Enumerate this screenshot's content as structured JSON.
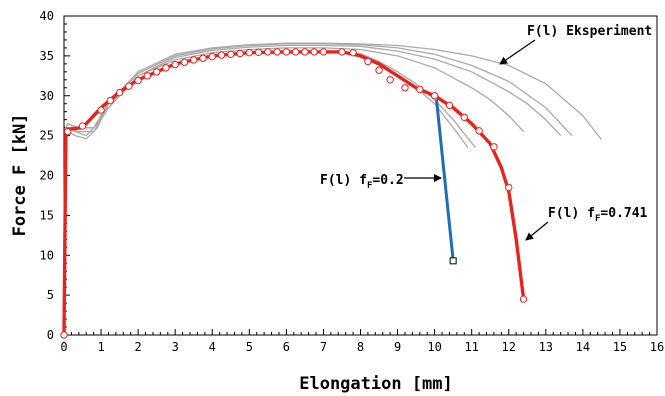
{
  "chart_data": {
    "type": "line",
    "xlabel": "Elongation [mm]",
    "ylabel": "Force F [kN]",
    "xlim": [
      0,
      16
    ],
    "ylim": [
      0,
      40
    ],
    "xticks": [
      "0",
      "1",
      "2",
      "3",
      "4",
      "5",
      "6",
      "7",
      "8",
      "9",
      "10",
      "11",
      "12",
      "13",
      "14",
      "15",
      "16"
    ],
    "yticks": [
      "0",
      "5",
      "10",
      "15",
      "20",
      "25",
      "30",
      "35",
      "40"
    ],
    "grid": false,
    "annotations": {
      "experiment": "F(l) Eksperiment",
      "ff02_prefix": "F(l) f",
      "ff02_sub": "F",
      "ff02_suffix": "=0.2",
      "ff0741_prefix": "F(l) f",
      "ff0741_sub": "F",
      "ff0741_suffix": "=0.741"
    },
    "colors": {
      "experiment": "#aaaaaa",
      "ff0741": "#e8231c",
      "ff02": "#1f6db5"
    },
    "experiment_curves": [
      {
        "x": [
          0,
          0.05,
          0.1,
          0.3,
          0.6,
          0.9,
          1.2,
          2,
          3,
          4,
          5,
          6,
          7,
          8,
          8.5,
          9,
          9.5,
          10,
          10.5,
          10.9
        ],
        "y": [
          0,
          25.5,
          26,
          25.5,
          25,
          26.5,
          29,
          32,
          34,
          35,
          35.4,
          35.5,
          35.5,
          35.2,
          34,
          32.5,
          31,
          29,
          26,
          23.5
        ]
      },
      {
        "x": [
          0,
          0.05,
          0.1,
          0.3,
          0.6,
          0.9,
          1.2,
          2,
          3,
          4,
          5,
          6,
          7,
          8,
          8.5,
          9,
          9.5,
          10,
          10.5,
          11.1
        ],
        "y": [
          0,
          25,
          25.5,
          25,
          24.6,
          26,
          29,
          32,
          34,
          35.1,
          35.5,
          35.6,
          35.6,
          35.3,
          34.3,
          33,
          31.5,
          29.5,
          27,
          23.5
        ]
      },
      {
        "x": [
          0,
          0.05,
          0.1,
          0.4,
          0.8,
          1.2,
          2,
          3,
          4,
          5,
          6,
          7,
          8,
          9,
          10,
          11,
          11.5,
          12,
          12.4
        ],
        "y": [
          0,
          26,
          26.5,
          26,
          26,
          28.5,
          32.5,
          34.5,
          35.4,
          35.8,
          36,
          36,
          35.8,
          35,
          33.5,
          31,
          29.5,
          27.5,
          25.5
        ]
      },
      {
        "x": [
          0,
          0.05,
          0.1,
          0.4,
          0.8,
          1.2,
          2,
          3,
          4,
          5,
          6,
          7,
          8,
          9,
          10,
          11,
          12,
          12.5,
          13,
          13.4
        ],
        "y": [
          0,
          25.5,
          26,
          25.5,
          25.5,
          28.5,
          32.5,
          34.8,
          35.7,
          36.1,
          36.3,
          36.3,
          36.2,
          35.6,
          34.6,
          33,
          30.5,
          29,
          27,
          25
        ]
      },
      {
        "x": [
          0,
          0.05,
          0.1,
          0.4,
          0.8,
          1.2,
          2,
          3,
          4,
          5,
          6,
          7,
          8,
          9,
          10,
          11,
          12,
          13,
          13.7
        ],
        "y": [
          0,
          26,
          26.5,
          26,
          26,
          29,
          32.8,
          35,
          35.9,
          36.3,
          36.5,
          36.5,
          36.4,
          36,
          35.2,
          33.8,
          31.8,
          28.5,
          25
        ]
      },
      {
        "x": [
          0,
          0.05,
          0.1,
          0.4,
          0.8,
          1.2,
          2,
          3,
          4,
          5,
          6,
          7,
          8,
          9,
          10,
          11,
          12,
          13,
          14,
          14.5
        ],
        "y": [
          0,
          26,
          26.5,
          26,
          26,
          29,
          33,
          35.2,
          36,
          36.4,
          36.6,
          36.6,
          36.5,
          36.3,
          35.8,
          35,
          33.8,
          31.5,
          27.5,
          24.5
        ]
      }
    ],
    "series": [
      {
        "key": "ff0741",
        "x": [
          0,
          0.05,
          0.1,
          0.5,
          1,
          1.5,
          2,
          3,
          4,
          5,
          6,
          7,
          7.5,
          8,
          8.5,
          9,
          9.5,
          10,
          10.5,
          11,
          11.5,
          11.8,
          12,
          12.2,
          12.4
        ],
        "y": [
          0,
          25.5,
          25.8,
          26,
          28.5,
          30.5,
          32,
          34,
          35,
          35.4,
          35.5,
          35.5,
          35.5,
          35,
          34,
          32.5,
          31,
          30,
          28.5,
          26.5,
          24,
          21,
          18,
          12,
          4.5
        ]
      },
      {
        "key": "ff02",
        "x": [
          10.05,
          10.5
        ],
        "y": [
          29.5,
          9.3
        ]
      }
    ],
    "ff0741_markers": {
      "x": [
        0,
        0.1,
        0.5,
        1,
        1.25,
        1.5,
        1.75,
        2,
        2.25,
        2.5,
        2.75,
        3,
        3.25,
        3.5,
        3.75,
        4,
        4.25,
        4.5,
        4.75,
        5,
        5.25,
        5.5,
        5.75,
        6,
        6.25,
        6.5,
        6.75,
        7,
        7.5,
        7.8,
        8.2,
        8.5,
        8.8,
        9.2,
        9.6,
        10,
        10.4,
        10.8,
        11.2,
        11.6,
        12,
        12.4
      ],
      "y": [
        0,
        25.5,
        26.2,
        28.2,
        29.4,
        30.4,
        31.2,
        31.9,
        32.5,
        33,
        33.5,
        33.9,
        34.2,
        34.5,
        34.7,
        34.9,
        35.1,
        35.2,
        35.3,
        35.4,
        35.45,
        35.5,
        35.5,
        35.5,
        35.5,
        35.5,
        35.5,
        35.5,
        35.5,
        35.4,
        34.3,
        33.2,
        32,
        31,
        30.8,
        30,
        28.8,
        27.3,
        25.6,
        23.6,
        18.5,
        4.5
      ]
    },
    "ff02_end_marker": {
      "x": 10.5,
      "y": 9.3
    }
  }
}
